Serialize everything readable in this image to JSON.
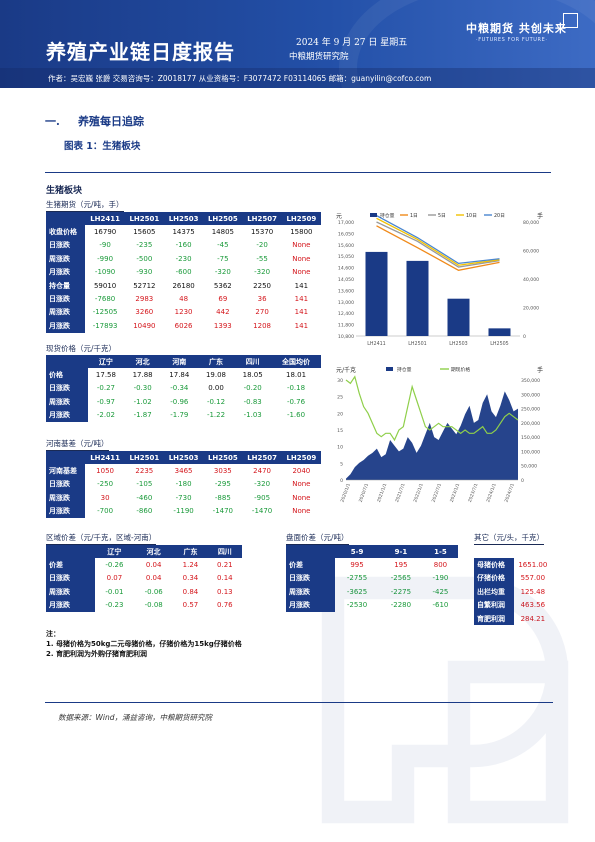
{
  "header": {
    "title": "养殖产业链日度报告",
    "date": "2024 年 9 月 27 日 星期五",
    "org": "中粮期货研究院",
    "logo_cn": "中粮期货 共创未来",
    "logo_en": "·FUTURES FOR FUTURE·",
    "authors": "作者：吴宏巍  张爵  交易咨询号：Z0018177 从业资格号：F3077472 F03114065  邮箱：guanyilin@cofco.com"
  },
  "section": {
    "num": "一.",
    "title": "养殖每日追踪"
  },
  "figure": {
    "label": "图表 1：生猪板块"
  },
  "block_title": "生猪板块",
  "futures": {
    "caption": "生猪期货（元/吨，手）",
    "headers": [
      "",
      "LH2411",
      "LH2501",
      "LH2503",
      "LH2505",
      "LH2507",
      "LH2509"
    ],
    "rows": [
      {
        "label": "收盘价格",
        "cells": [
          {
            "v": "16790",
            "c": "k"
          },
          {
            "v": "15605",
            "c": "k"
          },
          {
            "v": "14375",
            "c": "k"
          },
          {
            "v": "14805",
            "c": "k"
          },
          {
            "v": "15370",
            "c": "k"
          },
          {
            "v": "15800",
            "c": "k"
          }
        ]
      },
      {
        "label": "日涨跌",
        "cells": [
          {
            "v": "-90",
            "c": "g"
          },
          {
            "v": "-235",
            "c": "g"
          },
          {
            "v": "-160",
            "c": "g"
          },
          {
            "v": "-45",
            "c": "g"
          },
          {
            "v": "-20",
            "c": "g"
          },
          {
            "v": "None",
            "c": "r"
          }
        ]
      },
      {
        "label": "周涨跌",
        "cells": [
          {
            "v": "-990",
            "c": "g"
          },
          {
            "v": "-500",
            "c": "g"
          },
          {
            "v": "-230",
            "c": "g"
          },
          {
            "v": "-75",
            "c": "g"
          },
          {
            "v": "-55",
            "c": "g"
          },
          {
            "v": "None",
            "c": "r"
          }
        ]
      },
      {
        "label": "月涨跌",
        "cells": [
          {
            "v": "-1090",
            "c": "g"
          },
          {
            "v": "-930",
            "c": "g"
          },
          {
            "v": "-600",
            "c": "g"
          },
          {
            "v": "-320",
            "c": "g"
          },
          {
            "v": "-320",
            "c": "g"
          },
          {
            "v": "None",
            "c": "r"
          }
        ]
      },
      {
        "label": "持仓量",
        "cells": [
          {
            "v": "59010",
            "c": "k"
          },
          {
            "v": "52712",
            "c": "k"
          },
          {
            "v": "26180",
            "c": "k"
          },
          {
            "v": "5362",
            "c": "k"
          },
          {
            "v": "2250",
            "c": "k"
          },
          {
            "v": "141",
            "c": "k"
          }
        ]
      },
      {
        "label": "日涨跌",
        "cells": [
          {
            "v": "-7680",
            "c": "g"
          },
          {
            "v": "2983",
            "c": "r"
          },
          {
            "v": "48",
            "c": "r"
          },
          {
            "v": "69",
            "c": "r"
          },
          {
            "v": "36",
            "c": "r"
          },
          {
            "v": "141",
            "c": "r"
          }
        ]
      },
      {
        "label": "周涨跌",
        "cells": [
          {
            "v": "-12505",
            "c": "g"
          },
          {
            "v": "3260",
            "c": "r"
          },
          {
            "v": "1230",
            "c": "r"
          },
          {
            "v": "442",
            "c": "r"
          },
          {
            "v": "270",
            "c": "r"
          },
          {
            "v": "141",
            "c": "r"
          }
        ]
      },
      {
        "label": "月涨跌",
        "cells": [
          {
            "v": "-17893",
            "c": "g"
          },
          {
            "v": "10490",
            "c": "r"
          },
          {
            "v": "6026",
            "c": "r"
          },
          {
            "v": "1393",
            "c": "r"
          },
          {
            "v": "1208",
            "c": "r"
          },
          {
            "v": "141",
            "c": "r"
          }
        ]
      }
    ]
  },
  "spot": {
    "caption": "现货价格（元/千克）",
    "headers": [
      "",
      "辽宁",
      "河北",
      "河南",
      "广东",
      "四川",
      "全国均价"
    ],
    "rows": [
      {
        "label": "价格",
        "cells": [
          {
            "v": "17.58",
            "c": "k"
          },
          {
            "v": "17.88",
            "c": "k"
          },
          {
            "v": "17.84",
            "c": "k"
          },
          {
            "v": "19.08",
            "c": "k"
          },
          {
            "v": "18.05",
            "c": "k"
          },
          {
            "v": "18.01",
            "c": "k"
          }
        ]
      },
      {
        "label": "日涨跌",
        "cells": [
          {
            "v": "-0.27",
            "c": "g"
          },
          {
            "v": "-0.30",
            "c": "g"
          },
          {
            "v": "-0.34",
            "c": "g"
          },
          {
            "v": "0.00",
            "c": "k"
          },
          {
            "v": "-0.20",
            "c": "g"
          },
          {
            "v": "-0.18",
            "c": "g"
          }
        ]
      },
      {
        "label": "周涨跌",
        "cells": [
          {
            "v": "-0.97",
            "c": "g"
          },
          {
            "v": "-1.02",
            "c": "g"
          },
          {
            "v": "-0.96",
            "c": "g"
          },
          {
            "v": "-0.12",
            "c": "g"
          },
          {
            "v": "-0.83",
            "c": "g"
          },
          {
            "v": "-0.76",
            "c": "g"
          }
        ]
      },
      {
        "label": "月涨跌",
        "cells": [
          {
            "v": "-2.02",
            "c": "g"
          },
          {
            "v": "-1.87",
            "c": "g"
          },
          {
            "v": "-1.79",
            "c": "g"
          },
          {
            "v": "-1.22",
            "c": "g"
          },
          {
            "v": "-1.03",
            "c": "g"
          },
          {
            "v": "-1.60",
            "c": "g"
          }
        ]
      }
    ]
  },
  "basis": {
    "caption": "河南基差（元/吨）",
    "headers": [
      "",
      "LH2411",
      "LH2501",
      "LH2503",
      "LH2505",
      "LH2507",
      "LH2509"
    ],
    "rows": [
      {
        "label": "河南基差",
        "cells": [
          {
            "v": "1050",
            "c": "r"
          },
          {
            "v": "2235",
            "c": "r"
          },
          {
            "v": "3465",
            "c": "r"
          },
          {
            "v": "3035",
            "c": "r"
          },
          {
            "v": "2470",
            "c": "r"
          },
          {
            "v": "2040",
            "c": "r"
          }
        ]
      },
      {
        "label": "日涨跌",
        "cells": [
          {
            "v": "-250",
            "c": "g"
          },
          {
            "v": "-105",
            "c": "g"
          },
          {
            "v": "-180",
            "c": "g"
          },
          {
            "v": "-295",
            "c": "g"
          },
          {
            "v": "-320",
            "c": "g"
          },
          {
            "v": "None",
            "c": "r"
          }
        ]
      },
      {
        "label": "周涨跌",
        "cells": [
          {
            "v": "30",
            "c": "r"
          },
          {
            "v": "-460",
            "c": "g"
          },
          {
            "v": "-730",
            "c": "g"
          },
          {
            "v": "-885",
            "c": "g"
          },
          {
            "v": "-905",
            "c": "g"
          },
          {
            "v": "None",
            "c": "r"
          }
        ]
      },
      {
        "label": "月涨跌",
        "cells": [
          {
            "v": "-700",
            "c": "g"
          },
          {
            "v": "-860",
            "c": "g"
          },
          {
            "v": "-1190",
            "c": "g"
          },
          {
            "v": "-1470",
            "c": "g"
          },
          {
            "v": "-1470",
            "c": "g"
          },
          {
            "v": "None",
            "c": "r"
          }
        ]
      }
    ]
  },
  "regional": {
    "caption": "区域价差（元/千克，区域-河南）",
    "headers": [
      "",
      "辽宁",
      "河北",
      "广东",
      "四川"
    ],
    "rows": [
      {
        "label": "价差",
        "cells": [
          {
            "v": "-0.26",
            "c": "g"
          },
          {
            "v": "0.04",
            "c": "r"
          },
          {
            "v": "1.24",
            "c": "r"
          },
          {
            "v": "0.21",
            "c": "r"
          }
        ]
      },
      {
        "label": "日涨跌",
        "cells": [
          {
            "v": "0.07",
            "c": "r"
          },
          {
            "v": "0.04",
            "c": "r"
          },
          {
            "v": "0.34",
            "c": "r"
          },
          {
            "v": "0.14",
            "c": "r"
          }
        ]
      },
      {
        "label": "周涨跌",
        "cells": [
          {
            "v": "-0.01",
            "c": "g"
          },
          {
            "v": "-0.06",
            "c": "g"
          },
          {
            "v": "0.84",
            "c": "r"
          },
          {
            "v": "0.13",
            "c": "r"
          }
        ]
      },
      {
        "label": "月涨跌",
        "cells": [
          {
            "v": "-0.23",
            "c": "g"
          },
          {
            "v": "-0.08",
            "c": "g"
          },
          {
            "v": "0.57",
            "c": "r"
          },
          {
            "v": "0.76",
            "c": "r"
          }
        ]
      }
    ]
  },
  "spread": {
    "caption": "盘面价差（元/吨）",
    "headers": [
      "",
      "5-9",
      "9-1",
      "1-5"
    ],
    "rows": [
      {
        "label": "价差",
        "cells": [
          {
            "v": "995",
            "c": "r"
          },
          {
            "v": "195",
            "c": "r"
          },
          {
            "v": "800",
            "c": "r"
          }
        ]
      },
      {
        "label": "日涨跌",
        "cells": [
          {
            "v": "-2755",
            "c": "g"
          },
          {
            "v": "-2565",
            "c": "g"
          },
          {
            "v": "-190",
            "c": "g"
          }
        ]
      },
      {
        "label": "周涨跌",
        "cells": [
          {
            "v": "-3625",
            "c": "g"
          },
          {
            "v": "-2275",
            "c": "g"
          },
          {
            "v": "-425",
            "c": "g"
          }
        ]
      },
      {
        "label": "月涨跌",
        "cells": [
          {
            "v": "-2530",
            "c": "g"
          },
          {
            "v": "-2280",
            "c": "g"
          },
          {
            "v": "-610",
            "c": "g"
          }
        ]
      }
    ]
  },
  "other": {
    "caption": "其它（元/头，千克）",
    "rows": [
      {
        "label": "母猪价格",
        "v": "1651.00"
      },
      {
        "label": "仔猪价格",
        "v": "557.00"
      },
      {
        "label": "出栏均重",
        "v": "125.48"
      },
      {
        "label": "自繁利润",
        "v": "463.56"
      },
      {
        "label": "育肥利润",
        "v": "284.21"
      }
    ]
  },
  "notes": {
    "title": "注：",
    "items": [
      "1. 母猪价格为50kg二元母猪价格，仔猪价格为15kg仔猪价格",
      "2. 育肥利润为外购仔猪育肥利润"
    ]
  },
  "source": "数据来源：Wind，涌益咨询，中粮期货研究院",
  "colors": {
    "navy": "#1a3a86",
    "up": "#d4161c",
    "down": "#1a9a3a"
  },
  "chart_data": [
    {
      "type": "bar",
      "title": "",
      "categories": [
        "LH2411",
        "LH2501",
        "LH2503",
        "LH2505"
      ],
      "y_left_unit": "元",
      "y_right_unit": "手",
      "ylim": [
        10800,
        17000
      ],
      "y2lim": [
        0,
        80000
      ],
      "y_ticks": [
        "17,000",
        "16,050",
        "15,600",
        "15,050",
        "14,600",
        "14,050",
        "13,600",
        "13,000",
        "12,400",
        "11,800",
        "10,800"
      ],
      "y2_ticks": [
        "80,000",
        "60,000",
        "40,000",
        "20,000",
        "0"
      ],
      "series": [
        {
          "name": "持仓量",
          "kind": "bar",
          "axis": "right",
          "color": "#1a3a86",
          "values": [
            59010,
            52712,
            26180,
            5362
          ]
        },
        {
          "name": "1日",
          "kind": "line",
          "axis": "left",
          "color": "#f08a1a",
          "values": [
            16790,
            15605,
            14375,
            14805
          ]
        },
        {
          "name": "5日",
          "kind": "line",
          "axis": "left",
          "color": "#999999",
          "values": [
            17000,
            15950,
            14550,
            14900
          ]
        },
        {
          "name": "10日",
          "kind": "line",
          "axis": "left",
          "color": "#f2c200",
          "values": [
            17200,
            16050,
            14650,
            14950
          ]
        },
        {
          "name": "20日",
          "kind": "line",
          "axis": "left",
          "color": "#4a86d0",
          "values": [
            17350,
            16150,
            14750,
            15000
          ]
        }
      ]
    },
    {
      "type": "area",
      "title": "",
      "y_left_unit": "元/千克",
      "y_right_unit": "手",
      "ylim": [
        0,
        30
      ],
      "y2lim": [
        0,
        350000
      ],
      "y_ticks": [
        "30",
        "25",
        "20",
        "15",
        "10",
        "5",
        "0"
      ],
      "y2_ticks": [
        "350,000",
        "300,000",
        "250,000",
        "200,000",
        "150,000",
        "100,000",
        "50,000",
        "0"
      ],
      "x_ticks": [
        "2020/1/1",
        "2020/7/1",
        "2021/1/1",
        "2021/7/1",
        "2022/1/1",
        "2022/7/1",
        "2023/1/1",
        "2023/7/1",
        "2024/1/1",
        "2024/7/1"
      ],
      "series": [
        {
          "name": "持仓量",
          "kind": "area",
          "axis": "right",
          "color": "#1a3a86",
          "values": [
            5000,
            20000,
            45000,
            60000,
            70000,
            85000,
            95000,
            110000,
            80000,
            90000,
            140000,
            120000,
            100000,
            110000,
            150000,
            130000,
            95000,
            120000,
            160000,
            200000,
            150000,
            140000,
            170000,
            200000,
            180000,
            160000,
            190000,
            230000,
            260000,
            200000,
            210000,
            270000,
            300000,
            240000,
            220000,
            260000,
            310000,
            280000,
            240000,
            250000
          ]
        },
        {
          "name": "期现价格",
          "kind": "line",
          "axis": "left",
          "color": "#8fcf4a",
          "values": [
            30,
            29,
            31,
            26,
            22,
            20,
            17,
            14,
            13,
            14,
            14,
            12,
            15,
            16,
            22,
            28,
            24,
            20,
            16,
            15,
            16,
            17,
            16,
            16,
            16,
            15,
            14,
            15,
            14,
            14,
            15,
            16,
            14,
            14,
            15,
            17,
            19,
            20,
            19,
            18
          ]
        }
      ]
    }
  ]
}
